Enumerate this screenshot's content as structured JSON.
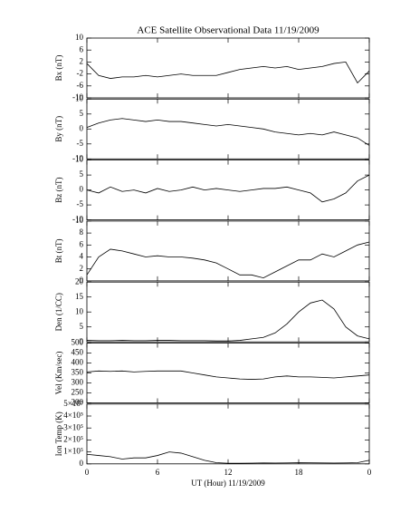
{
  "chart_data": [
    {
      "type": "line",
      "title": "ACE Satellite Observational Data   11/19/2009",
      "ylabel": "Bx (nT)",
      "x": [
        0,
        1,
        2,
        3,
        4,
        5,
        6,
        7,
        8,
        9,
        10,
        11,
        12,
        13,
        14,
        15,
        16,
        17,
        18,
        19,
        20,
        21,
        22,
        23,
        24
      ],
      "values": [
        1.5,
        -2.5,
        -3.5,
        -3,
        -3,
        -2.5,
        -3,
        -2.5,
        -2,
        -2.5,
        -2.5,
        -2.5,
        -1.5,
        -0.5,
        0,
        0.5,
        0,
        0.5,
        -0.5,
        0,
        0.5,
        1.5,
        2,
        -5,
        -1
      ],
      "xlim": [
        0,
        24
      ],
      "xticks": [
        0,
        6,
        12,
        18,
        {
          "value": 24,
          "label": "0"
        }
      ],
      "ylim": [
        -10,
        10
      ],
      "yticks": [
        -10,
        -6,
        -2,
        2,
        6,
        10
      ],
      "color": "#000000"
    },
    {
      "type": "line",
      "ylabel": "By (nT)",
      "x": [
        0,
        1,
        2,
        3,
        4,
        5,
        6,
        7,
        8,
        9,
        10,
        11,
        12,
        13,
        14,
        15,
        16,
        17,
        18,
        19,
        20,
        21,
        22,
        23,
        24
      ],
      "values": [
        0.5,
        2,
        3,
        3.5,
        3,
        2.5,
        3,
        2.5,
        2.5,
        2,
        1.5,
        1,
        1.5,
        1,
        0.5,
        0,
        -1,
        -1.5,
        -2,
        -1.5,
        -2,
        -1,
        -2,
        -3,
        -5.5
      ],
      "xlim": [
        0,
        24
      ],
      "xticks": [
        0,
        6,
        12,
        18,
        {
          "value": 24,
          "label": "0"
        }
      ],
      "ylim": [
        -10,
        10
      ],
      "yticks": [
        -10,
        -5,
        0,
        5,
        10
      ],
      "color": "#000000"
    },
    {
      "type": "line",
      "ylabel": "Bz (nT)",
      "x": [
        0,
        1,
        2,
        3,
        4,
        5,
        6,
        7,
        8,
        9,
        10,
        11,
        12,
        13,
        14,
        15,
        16,
        17,
        18,
        19,
        20,
        21,
        22,
        23,
        24
      ],
      "values": [
        0,
        -1,
        1,
        -0.5,
        0,
        -1,
        0.5,
        -0.5,
        0,
        1,
        0,
        0.5,
        0,
        -0.5,
        0,
        0.5,
        0.5,
        1,
        0,
        -1,
        -4,
        -3,
        -1,
        3,
        5
      ],
      "xlim": [
        0,
        24
      ],
      "xticks": [
        0,
        6,
        12,
        18,
        {
          "value": 24,
          "label": "0"
        }
      ],
      "ylim": [
        -10,
        10
      ],
      "yticks": [
        -10,
        -5,
        0,
        5,
        10
      ],
      "color": "#000000"
    },
    {
      "type": "line",
      "ylabel": "Bt (nT)",
      "x": [
        0,
        1,
        2,
        3,
        4,
        5,
        6,
        7,
        8,
        9,
        10,
        11,
        12,
        13,
        14,
        15,
        16,
        17,
        18,
        19,
        20,
        21,
        22,
        23,
        24
      ],
      "values": [
        1,
        4,
        5.3,
        5,
        4.5,
        4,
        4.2,
        4,
        4,
        3.8,
        3.5,
        3,
        2,
        1,
        1,
        0.5,
        1.5,
        2.5,
        3.5,
        3.5,
        4.5,
        4,
        5,
        6,
        6.5
      ],
      "xlim": [
        0,
        24
      ],
      "xticks": [
        0,
        6,
        12,
        18,
        {
          "value": 24,
          "label": "0"
        }
      ],
      "ylim": [
        0,
        10
      ],
      "yticks": [
        0,
        2,
        4,
        6,
        8,
        10
      ],
      "color": "#000000"
    },
    {
      "type": "line",
      "ylabel": "Den (1/CC)",
      "x": [
        0,
        1,
        2,
        3,
        4,
        5,
        6,
        7,
        8,
        9,
        10,
        11,
        12,
        13,
        14,
        15,
        16,
        17,
        18,
        19,
        20,
        21,
        22,
        23,
        24
      ],
      "values": [
        0.5,
        0.4,
        0.4,
        0.5,
        0.4,
        0.4,
        0.5,
        0.5,
        0.4,
        0.4,
        0.4,
        0.3,
        0.3,
        0.5,
        1,
        1.5,
        3,
        6,
        10,
        13,
        14,
        11,
        5,
        2,
        1
      ],
      "xlim": [
        0,
        24
      ],
      "xticks": [
        0,
        6,
        12,
        18,
        {
          "value": 24,
          "label": "0"
        }
      ],
      "ylim": [
        0,
        20
      ],
      "yticks": [
        0,
        5,
        10,
        15,
        20
      ],
      "color": "#000000"
    },
    {
      "type": "line",
      "ylabel": "Vel (Km/sec)",
      "x": [
        0,
        1,
        2,
        3,
        4,
        5,
        6,
        7,
        8,
        9,
        10,
        11,
        12,
        13,
        14,
        15,
        16,
        17,
        18,
        19,
        20,
        21,
        22,
        23,
        24
      ],
      "values": [
        355,
        360,
        358,
        360,
        355,
        358,
        360,
        360,
        360,
        350,
        340,
        330,
        325,
        320,
        318,
        320,
        330,
        335,
        330,
        330,
        328,
        325,
        330,
        335,
        340
      ],
      "xlim": [
        0,
        24
      ],
      "xticks": [
        0,
        6,
        12,
        18,
        {
          "value": 24,
          "label": "0"
        }
      ],
      "ylim": [
        200,
        500
      ],
      "yticks": [
        200,
        250,
        300,
        350,
        400,
        450,
        500
      ],
      "color": "#000000"
    },
    {
      "type": "line",
      "ylabel": "Ion Temp (K)",
      "xlabel": "UT (Hour)  11/19/2009",
      "x": [
        0,
        1,
        2,
        3,
        4,
        5,
        6,
        7,
        8,
        9,
        10,
        11,
        12,
        13,
        14,
        15,
        16,
        17,
        18,
        19,
        20,
        21,
        22,
        23,
        24
      ],
      "values": [
        80000,
        70000,
        60000,
        40000,
        50000,
        50000,
        70000,
        100000,
        90000,
        60000,
        30000,
        10000,
        5000,
        5000,
        6000,
        8000,
        7000,
        8000,
        10000,
        9000,
        8000,
        7000,
        8000,
        10000,
        30000
      ],
      "xlim": [
        0,
        24
      ],
      "xticks": [
        0,
        6,
        12,
        18,
        {
          "value": 24,
          "label": "0"
        }
      ],
      "ylim": [
        0,
        500000
      ],
      "yticks": [
        0,
        {
          "value": 100000,
          "label": "1×10⁵"
        },
        {
          "value": 200000,
          "label": "2×10⁵"
        },
        {
          "value": 300000,
          "label": "3×10⁵"
        },
        {
          "value": 400000,
          "label": "4×10⁵"
        },
        {
          "value": 500000,
          "label": "5×10⁵"
        }
      ],
      "color": "#000000"
    }
  ]
}
